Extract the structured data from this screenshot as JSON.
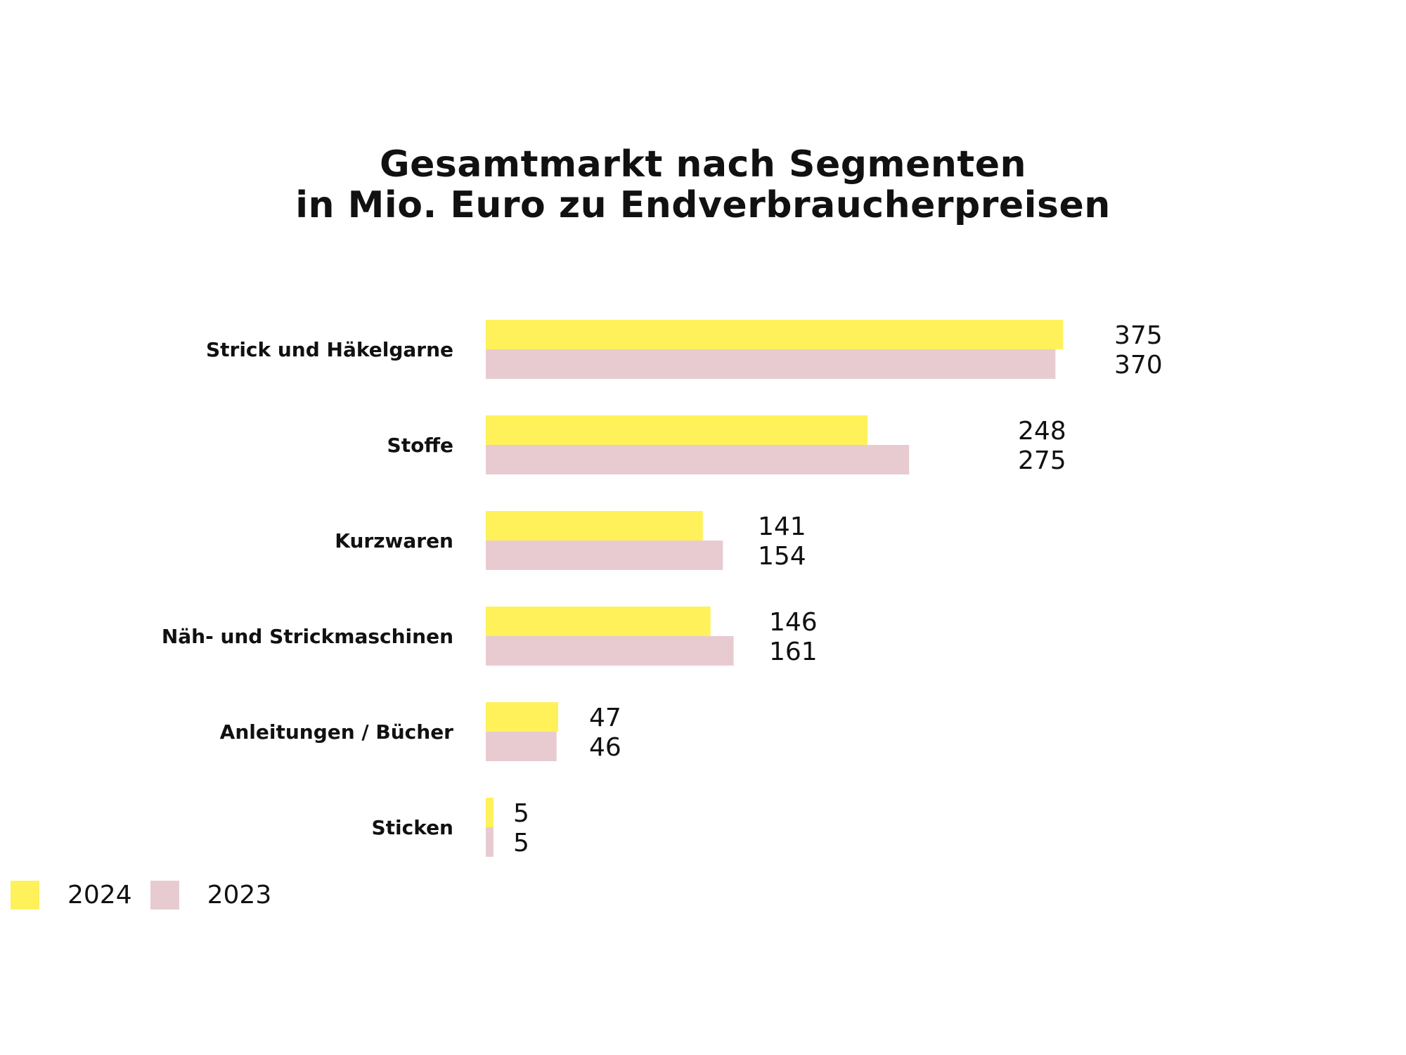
{
  "chart_data": {
    "type": "bar",
    "orientation": "horizontal",
    "title": [
      "Gesamtmarkt nach Segmenten",
      "in Mio. Euro zu Endverbraucherpreisen"
    ],
    "categories": [
      "Strick und Häkelgarne",
      "Stoffe",
      "Kurzwaren",
      "Näh- und Strickmaschinen",
      "Anleitungen / Bücher",
      "Sticken"
    ],
    "series": [
      {
        "name": "2024",
        "color": "#FFF15A",
        "values": [
          375,
          248,
          141,
          146,
          47,
          5
        ]
      },
      {
        "name": "2023",
        "color": "#E8CBD1",
        "values": [
          370,
          275,
          154,
          161,
          46,
          5
        ]
      }
    ],
    "data_labels": true,
    "grid": false,
    "legend_position": "bottom-left"
  },
  "legend": [
    {
      "label": "2024",
      "color": "#FFF15A"
    },
    {
      "label": "2023",
      "color": "#E8CBD1"
    }
  ]
}
